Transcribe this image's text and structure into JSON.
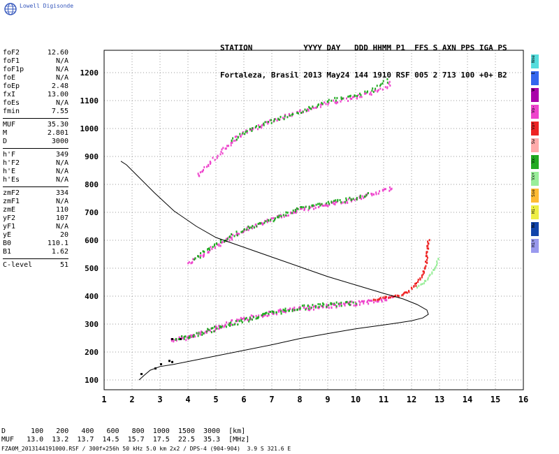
{
  "brand": {
    "name": "Lowell Digisonde",
    "logo_icon": "globe-icon"
  },
  "header": {
    "line1": "STATION           YYYY DAY   DDD HHMM P1  FFS S AXN PPS IGA PS",
    "line2": "Fortaleza, Brasil 2013 May24 144 1910 RSF 005 2 713 100 +0+ B2"
  },
  "params": {
    "group1": [
      {
        "label": "foF2",
        "value": "12.60"
      },
      {
        "label": "foF1",
        "value": "N/A"
      },
      {
        "label": "foF1p",
        "value": "N/A"
      },
      {
        "label": "foE",
        "value": "N/A"
      },
      {
        "label": "foEp",
        "value": "2.48"
      },
      {
        "label": "fxI",
        "value": "13.00"
      },
      {
        "label": "foEs",
        "value": "N/A"
      },
      {
        "label": "fmin",
        "value": "7.55"
      }
    ],
    "group2": [
      {
        "label": "MUF",
        "value": "35.30"
      },
      {
        "label": "M",
        "value": "2.801"
      },
      {
        "label": "D",
        "value": "3000"
      }
    ],
    "group3": [
      {
        "label": "h'F",
        "value": "349"
      },
      {
        "label": "h'F2",
        "value": "N/A"
      },
      {
        "label": "h'E",
        "value": "N/A"
      },
      {
        "label": "h'Es",
        "value": "N/A"
      }
    ],
    "group4": [
      {
        "label": "zmF2",
        "value": "334"
      },
      {
        "label": "zmF1",
        "value": "N/A"
      },
      {
        "label": "zmE",
        "value": "110"
      },
      {
        "label": "yF2",
        "value": "107"
      },
      {
        "label": "yF1",
        "value": "N/A"
      },
      {
        "label": "yE",
        "value": "20"
      },
      {
        "label": "B0",
        "value": "110.1"
      },
      {
        "label": "B1",
        "value": "1.62"
      }
    ],
    "group5": [
      {
        "label": "C-level",
        "value": "51"
      }
    ]
  },
  "legend": [
    {
      "label": "Nne",
      "color": "#55dddd"
    },
    {
      "label": "E",
      "color": "#3366ee"
    },
    {
      "label": "W",
      "color": "#aa00aa"
    },
    {
      "label": "Vo-",
      "color": "#ee44cc"
    },
    {
      "label": "Vo+",
      "color": "#ee2222"
    },
    {
      "label": "Sw",
      "color": "#ffaaaa"
    },
    {
      "label": "Vx-",
      "color": "#22aa22"
    },
    {
      "label": "Vx+",
      "color": "#99ee99"
    },
    {
      "label": "Sse",
      "color": "#ffbb33"
    },
    {
      "label": "Hi-",
      "color": "#eeee44"
    },
    {
      "label": "Nw",
      "color": "#1144aa"
    },
    {
      "label": "Hi+",
      "color": "#9999ee"
    }
  ],
  "muf_table": {
    "d_label": "D",
    "muf_label": "MUF",
    "d_values": [
      "100",
      "200",
      "400",
      "600",
      "800",
      "1000",
      "1500",
      "3000"
    ],
    "d_unit": "[km]",
    "muf_values": [
      "13.0",
      "13.2",
      "13.7",
      "14.5",
      "15.7",
      "17.5",
      "22.5",
      "35.3"
    ],
    "muf_unit": "[MHz]"
  },
  "footer": "FZA0M_2013144191000.RSF / 300f×256h 50 kHz 5.0 km 2x2 / DPS-4 (904-904)  3.9 S 321.6 E",
  "chart_data": {
    "type": "scatter",
    "x_ticks": [
      "1",
      "2",
      "3",
      "4",
      "5",
      "6",
      "7",
      "8",
      "9",
      "10",
      "11",
      "12",
      "13",
      "14",
      "15",
      "16"
    ],
    "y_ticks": [
      "100",
      "200",
      "300",
      "400",
      "500",
      "600",
      "700",
      "800",
      "900",
      "1000",
      "1100",
      "1200"
    ],
    "xlim": [
      1,
      16
    ],
    "ylim": [
      65,
      1280
    ],
    "grid": true,
    "colors": {
      "o": "#ee44cc",
      "x": "#22aa22",
      "r": "#ee2222",
      "xp": "#99ee99"
    },
    "profile_curve": [
      [
        2.25,
        100
      ],
      [
        2.45,
        118
      ],
      [
        2.65,
        135
      ],
      [
        3.0,
        148
      ],
      [
        3.5,
        156
      ],
      [
        4,
        166
      ],
      [
        5,
        186
      ],
      [
        6,
        206
      ],
      [
        7,
        226
      ],
      [
        8,
        248
      ],
      [
        9,
        266
      ],
      [
        10,
        283
      ],
      [
        11,
        297
      ],
      [
        11.5,
        304
      ],
      [
        12,
        312
      ],
      [
        12.4,
        322
      ],
      [
        12.6,
        335
      ],
      [
        12.55,
        350
      ],
      [
        12.2,
        370
      ],
      [
        11.7,
        390
      ],
      [
        11,
        410
      ],
      [
        10,
        440
      ],
      [
        9,
        470
      ],
      [
        8,
        505
      ],
      [
        7,
        540
      ],
      [
        6,
        575
      ],
      [
        5,
        610
      ],
      [
        4.3,
        650
      ],
      [
        3.5,
        705
      ],
      [
        2.8,
        770
      ],
      [
        2.2,
        830
      ],
      [
        1.8,
        870
      ],
      [
        1.6,
        883
      ]
    ],
    "first_hop_o": [
      [
        3.4,
        245
      ],
      [
        4,
        257
      ],
      [
        4.5,
        272
      ],
      [
        5,
        290
      ],
      [
        5.5,
        307
      ],
      [
        6,
        320
      ],
      [
        6.5,
        333
      ],
      [
        7,
        344
      ],
      [
        7.5,
        352
      ],
      [
        8,
        358
      ],
      [
        8.5,
        363
      ],
      [
        9,
        368
      ],
      [
        9.5,
        372
      ],
      [
        10,
        378
      ],
      [
        10.5,
        384
      ],
      [
        11,
        391
      ],
      [
        11.3,
        398
      ]
    ],
    "first_hop_x": [
      [
        3.5,
        250
      ],
      [
        4.2,
        262
      ],
      [
        5,
        287
      ],
      [
        6,
        318
      ],
      [
        7,
        343
      ],
      [
        8,
        362
      ],
      [
        8.5,
        368
      ],
      [
        9,
        372
      ],
      [
        9.5,
        375
      ],
      [
        10,
        381
      ]
    ],
    "first_hop_r": [
      [
        10.6,
        392
      ],
      [
        11,
        398
      ],
      [
        11.3,
        402
      ],
      [
        11.6,
        406
      ],
      [
        12,
        430
      ],
      [
        12.2,
        455
      ],
      [
        12.4,
        480
      ],
      [
        12.5,
        520
      ],
      [
        12.55,
        580
      ],
      [
        12.6,
        610
      ]
    ],
    "first_hop_xp": [
      [
        12.2,
        435
      ],
      [
        12.5,
        460
      ],
      [
        12.8,
        500
      ],
      [
        12.95,
        545
      ]
    ],
    "second_hop_o": [
      [
        4,
        520
      ],
      [
        4.5,
        550
      ],
      [
        5,
        585
      ],
      [
        5.5,
        610
      ],
      [
        6,
        640
      ],
      [
        6.5,
        660
      ],
      [
        7,
        678
      ],
      [
        7.5,
        695
      ],
      [
        8,
        712
      ],
      [
        8.5,
        722
      ],
      [
        9,
        732
      ],
      [
        9.5,
        740
      ],
      [
        10,
        752
      ],
      [
        10.5,
        765
      ],
      [
        11,
        780
      ],
      [
        11.3,
        795
      ]
    ],
    "second_hop_x": [
      [
        4.2,
        535
      ],
      [
        5,
        590
      ],
      [
        6,
        640
      ],
      [
        7,
        678
      ],
      [
        8,
        718
      ],
      [
        8.5,
        728
      ],
      [
        9,
        738
      ],
      [
        9.5,
        745
      ],
      [
        10,
        755
      ],
      [
        10.5,
        768
      ]
    ],
    "third_hop_o": [
      [
        4.3,
        830
      ],
      [
        4.8,
        880
      ],
      [
        5.2,
        925
      ],
      [
        5.6,
        960
      ],
      [
        6,
        990
      ],
      [
        6.5,
        1010
      ],
      [
        7,
        1030
      ],
      [
        8,
        1065
      ],
      [
        8.5,
        1080
      ],
      [
        9,
        1095
      ],
      [
        9.5,
        1105
      ],
      [
        10,
        1115
      ],
      [
        10.5,
        1130
      ],
      [
        11,
        1150
      ],
      [
        11.3,
        1170
      ]
    ],
    "third_hop_x": [
      [
        5.5,
        955
      ],
      [
        6.3,
        1005
      ],
      [
        7.2,
        1035
      ],
      [
        8.2,
        1072
      ],
      [
        9,
        1100
      ],
      [
        10.5,
        1135
      ],
      [
        11.2,
        1180
      ]
    ],
    "scatter_misc": [
      [
        2.3,
        125
      ],
      [
        2.8,
        145
      ],
      [
        3.0,
        160
      ],
      [
        3.3,
        172
      ],
      [
        3.4,
        168
      ],
      [
        3.7,
        250
      ],
      [
        3.4,
        250
      ]
    ]
  }
}
